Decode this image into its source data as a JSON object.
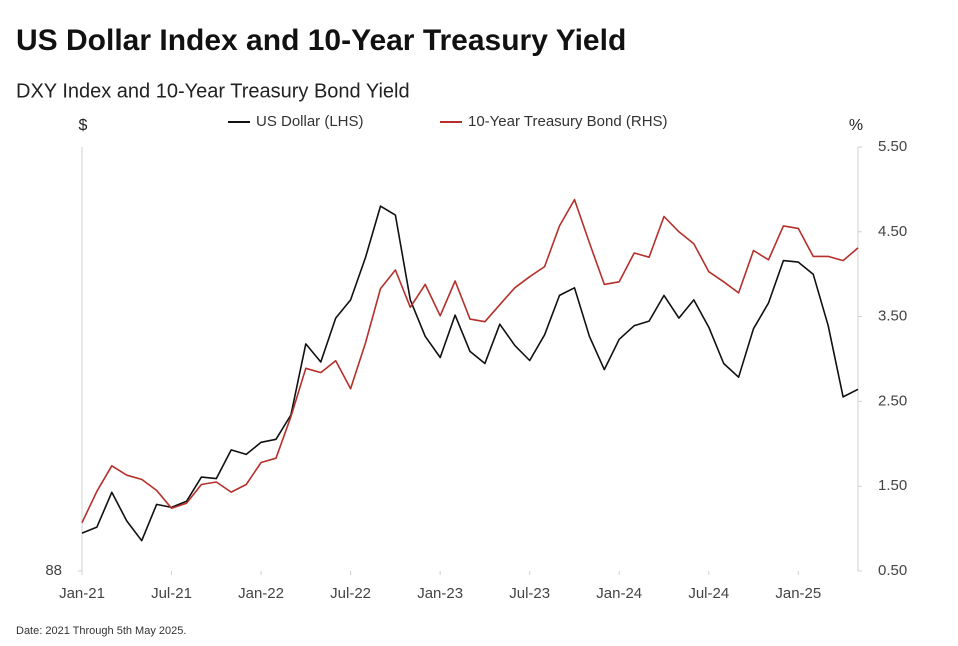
{
  "chart_data": {
    "type": "line",
    "title": "US Dollar Index and 10-Year Treasury Yield",
    "subtitle": "DXY Index and 10-Year Treasury Bond Yield",
    "y_label": "$",
    "y2_label": "%",
    "note": "Date: 2021 Through 5th May 2025.",
    "x": [
      "2021-01",
      "2021-02",
      "2021-03",
      "2021-04",
      "2021-05",
      "2021-06",
      "2021-07",
      "2021-08",
      "2021-09",
      "2021-10",
      "2021-11",
      "2021-12",
      "2022-01",
      "2022-02",
      "2022-03",
      "2022-04",
      "2022-05",
      "2022-06",
      "2022-07",
      "2022-08",
      "2022-09",
      "2022-10",
      "2022-11",
      "2022-12",
      "2023-01",
      "2023-02",
      "2023-03",
      "2023-04",
      "2023-05",
      "2023-06",
      "2023-07",
      "2023-08",
      "2023-09",
      "2023-10",
      "2023-11",
      "2023-12",
      "2024-01",
      "2024-02",
      "2024-03",
      "2024-04",
      "2024-05",
      "2024-06",
      "2024-07",
      "2024-08",
      "2024-09",
      "2024-10",
      "2024-11",
      "2024-12",
      "2025-01",
      "2025-02",
      "2025-03",
      "2025-04",
      "2025-05"
    ],
    "series": [
      {
        "name": "US Dollar (LHS)",
        "color": "#111111",
        "axis": "y",
        "values": [
          90.5,
          90.9,
          93.2,
          91.3,
          90.0,
          92.4,
          92.2,
          92.6,
          94.2,
          94.1,
          96.0,
          95.7,
          96.5,
          96.7,
          98.3,
          103.0,
          101.8,
          104.7,
          105.9,
          108.7,
          112.1,
          111.5,
          105.9,
          103.5,
          102.1,
          104.9,
          102.5,
          101.7,
          104.3,
          102.9,
          101.9,
          103.6,
          106.2,
          106.7,
          103.5,
          101.3,
          103.3,
          104.2,
          104.5,
          106.2,
          104.7,
          105.9,
          104.1,
          101.7,
          100.8,
          104.0,
          105.7,
          108.5,
          108.4,
          107.6,
          104.2,
          99.5,
          100.0
        ]
      },
      {
        "name": "10-Year Treasury Bond (RHS)",
        "color": "#b5302a",
        "axis": "y2",
        "values": [
          1.07,
          1.44,
          1.74,
          1.63,
          1.58,
          1.45,
          1.24,
          1.3,
          1.52,
          1.55,
          1.43,
          1.52,
          1.78,
          1.83,
          2.32,
          2.89,
          2.84,
          2.98,
          2.65,
          3.19,
          3.83,
          4.05,
          3.61,
          3.88,
          3.51,
          3.92,
          3.47,
          3.44,
          3.64,
          3.84,
          3.97,
          4.09,
          4.57,
          4.88,
          4.37,
          3.88,
          3.91,
          4.25,
          4.2,
          4.68,
          4.5,
          4.36,
          4.03,
          3.91,
          3.78,
          4.28,
          4.17,
          4.57,
          4.54,
          4.21,
          4.21,
          4.16,
          4.31
        ]
      }
    ],
    "xticks": [
      {
        "value": "2021-01",
        "label": "Jan-21"
      },
      {
        "value": "2021-07",
        "label": "Jul-21"
      },
      {
        "value": "2022-01",
        "label": "Jan-22"
      },
      {
        "value": "2022-07",
        "label": "Jul-22"
      },
      {
        "value": "2023-01",
        "label": "Jan-23"
      },
      {
        "value": "2023-07",
        "label": "Jul-23"
      },
      {
        "value": "2024-01",
        "label": "Jan-24"
      },
      {
        "value": "2024-07",
        "label": "Jul-24"
      },
      {
        "value": "2025-01",
        "label": "Jan-25"
      }
    ],
    "xlim": [
      "2021-01",
      "2025-05"
    ],
    "ylim": [
      88,
      116
    ],
    "yticks": [
      88
    ],
    "y2lim": [
      0.5,
      5.5
    ],
    "y2ticks": [
      {
        "value": 0.5,
        "label": "0.50"
      },
      {
        "value": 1.5,
        "label": "1.50"
      },
      {
        "value": 2.5,
        "label": "2.50"
      },
      {
        "value": 3.5,
        "label": "3.50"
      },
      {
        "value": 4.5,
        "label": "4.50"
      },
      {
        "value": 5.5,
        "label": "5.50"
      }
    ],
    "legend": "top",
    "grid": false
  }
}
